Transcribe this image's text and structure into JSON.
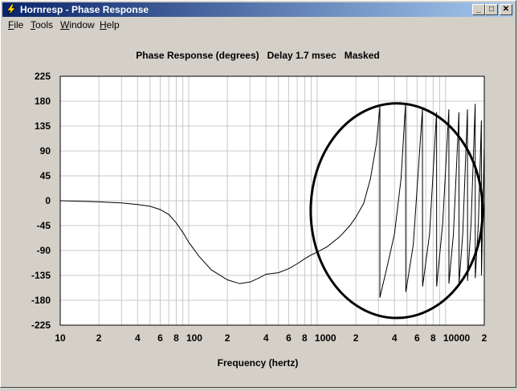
{
  "window": {
    "title": "Hornresp - Phase Response",
    "minimize_glyph": "_",
    "maximize_glyph": "□",
    "close_glyph": "✕"
  },
  "menu": [
    {
      "label": "File",
      "accel": "F",
      "rest": "ile"
    },
    {
      "label": "Tools",
      "accel": "T",
      "rest": "ools"
    },
    {
      "label": "Window",
      "accel": "W",
      "rest": "indow"
    },
    {
      "label": "Help",
      "accel": "H",
      "rest": "elp"
    }
  ],
  "chart": {
    "header": "Phase Response (degrees)   Delay 1.7 msec   Masked",
    "xlabel": "Frequency (hertz)"
  },
  "chart_data": {
    "type": "line",
    "title": "Phase Response (degrees)   Delay 1.7 msec   Masked",
    "xlabel": "Frequency (hertz)",
    "ylabel": "",
    "x_scale": "log",
    "xlim": [
      10,
      20000
    ],
    "ylim": [
      -225,
      225
    ],
    "y_ticks": [
      225,
      180,
      135,
      90,
      45,
      0,
      -45,
      -90,
      -135,
      -180,
      -225
    ],
    "x_tick_labels": [
      {
        "value": 10,
        "label": "10"
      },
      {
        "value": 20,
        "label": "2"
      },
      {
        "value": 40,
        "label": "4"
      },
      {
        "value": 60,
        "label": "6"
      },
      {
        "value": 80,
        "label": "8"
      },
      {
        "value": 100,
        "label": "100"
      },
      {
        "value": 200,
        "label": "2"
      },
      {
        "value": 400,
        "label": "4"
      },
      {
        "value": 600,
        "label": "6"
      },
      {
        "value": 800,
        "label": "8"
      },
      {
        "value": 1000,
        "label": "1000"
      },
      {
        "value": 2000,
        "label": "2"
      },
      {
        "value": 4000,
        "label": "4"
      },
      {
        "value": 6000,
        "label": "6"
      },
      {
        "value": 8000,
        "label": "8"
      },
      {
        "value": 10000,
        "label": "10000"
      },
      {
        "value": 20000,
        "label": "2"
      }
    ],
    "grid": true,
    "series": [
      {
        "points": [
          [
            10,
            0
          ],
          [
            15,
            -1
          ],
          [
            20,
            -2
          ],
          [
            30,
            -4
          ],
          [
            40,
            -7
          ],
          [
            50,
            -10
          ],
          [
            60,
            -16
          ],
          [
            70,
            -25
          ],
          [
            80,
            -40
          ],
          [
            90,
            -57
          ],
          [
            100,
            -75
          ],
          [
            120,
            -100
          ],
          [
            150,
            -125
          ],
          [
            200,
            -143
          ],
          [
            250,
            -150
          ],
          [
            300,
            -147
          ],
          [
            350,
            -140
          ],
          [
            400,
            -133
          ],
          [
            500,
            -130
          ],
          [
            600,
            -123
          ],
          [
            700,
            -114
          ],
          [
            800,
            -105
          ],
          [
            900,
            -98
          ],
          [
            1000,
            -93
          ],
          [
            1200,
            -83
          ],
          [
            1500,
            -65
          ],
          [
            1800,
            -45
          ],
          [
            2000,
            -30
          ],
          [
            2300,
            -5
          ],
          [
            2600,
            40
          ],
          [
            2900,
            105
          ],
          [
            3080,
            170
          ],
          [
            3080,
            -175
          ],
          [
            3500,
            -120
          ],
          [
            4000,
            -60
          ],
          [
            4500,
            40
          ],
          [
            4880,
            177
          ],
          [
            4900,
            -165
          ],
          [
            5600,
            -80
          ],
          [
            6600,
            165
          ],
          [
            6620,
            -155
          ],
          [
            7500,
            -60
          ],
          [
            8500,
            160
          ],
          [
            8520,
            -155
          ],
          [
            9500,
            -40
          ],
          [
            10600,
            165
          ],
          [
            10620,
            -150
          ],
          [
            11500,
            -60
          ],
          [
            12700,
            160
          ],
          [
            12720,
            -150
          ],
          [
            13600,
            -60
          ],
          [
            14800,
            165
          ],
          [
            14820,
            -145
          ],
          [
            15800,
            -40
          ],
          [
            17000,
            175
          ],
          [
            17020,
            -140
          ],
          [
            18000,
            -40
          ],
          [
            19000,
            145
          ],
          [
            19020,
            -135
          ],
          [
            20000,
            100
          ]
        ]
      }
    ],
    "annotation": {
      "shape": "ellipse",
      "x_range": [
        1000,
        20000
      ],
      "y_range": [
        -212,
        176
      ]
    }
  }
}
